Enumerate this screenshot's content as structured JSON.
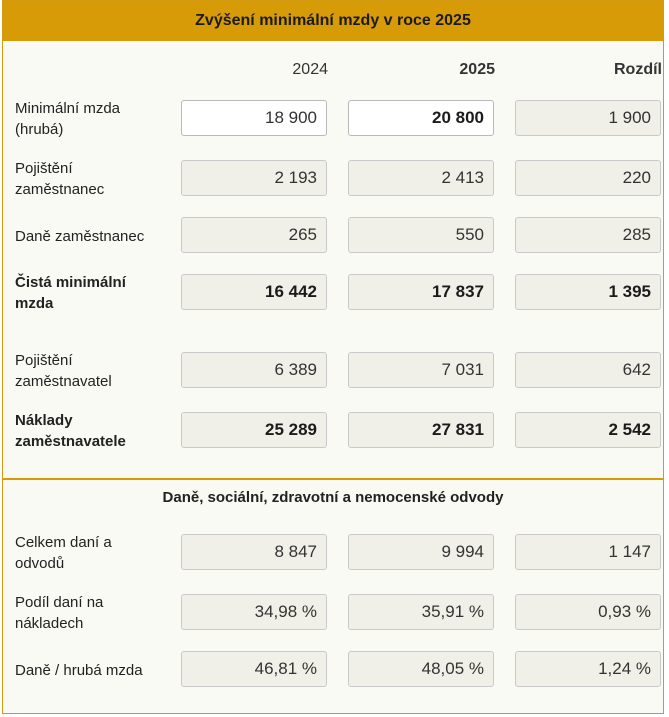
{
  "title": "Zvýšení minimální mzdy v roce 2025",
  "columns": {
    "y2024": "2024",
    "y2025": "2025",
    "diff": "Rozdíl"
  },
  "rows": [
    {
      "label": "Minimální mzda (hrubá)",
      "v2024": "18 900",
      "v2025": "20 800",
      "diff": "1 900"
    },
    {
      "label": "Pojištění zaměstnanec",
      "v2024": "2 193",
      "v2025": "2 413",
      "diff": "220"
    },
    {
      "label": "Daně zaměstnanec",
      "v2024": "265",
      "v2025": "550",
      "diff": "285"
    },
    {
      "label": "Čistá minimální mzda",
      "v2024": "16 442",
      "v2025": "17 837",
      "diff": "1 395"
    },
    {
      "label": "Pojištění zaměstnavatel",
      "v2024": "6 389",
      "v2025": "7 031",
      "diff": "642"
    },
    {
      "label": "Náklady zaměstnavatele",
      "v2024": "25 289",
      "v2025": "27 831",
      "diff": "2 542"
    }
  ],
  "section2_title": "Daně, sociální, zdravotní a nemocenské odvody",
  "rows2": [
    {
      "label": "Celkem daní a odvodů",
      "v2024": "8 847",
      "v2025": "9 994",
      "diff": "1 147"
    },
    {
      "label": "Podíl daní na nákladech",
      "v2024": "34,98 %",
      "v2025": "35,91 %",
      "diff": "0,93 %"
    },
    {
      "label": "Daně / hrubá mzda",
      "v2024": "46,81 %",
      "v2025": "48,05 %",
      "diff": "1,24 %"
    }
  ],
  "colors": {
    "accent": "#d69b07",
    "panel_bg": "#fafaf4",
    "readonly_bg": "#f1f0e8"
  }
}
